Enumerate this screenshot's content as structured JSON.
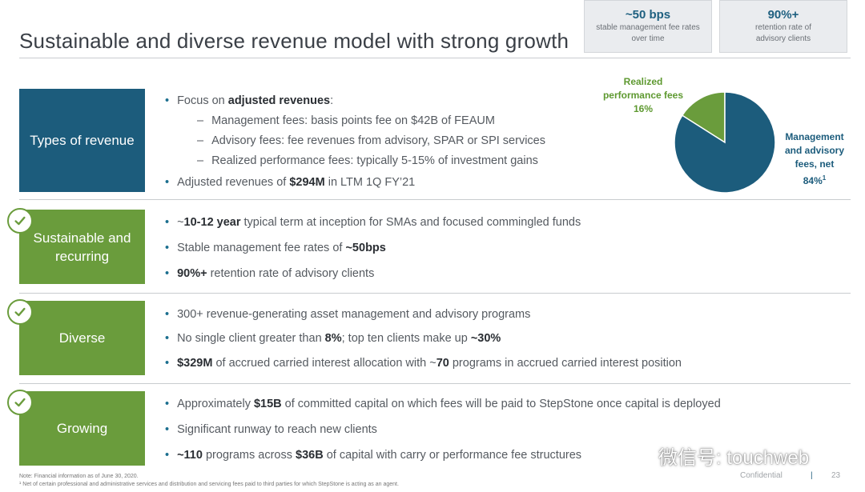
{
  "title": "Sustainable and diverse revenue model with strong growth",
  "stats": [
    {
      "big": "~50 bps",
      "small1": "stable management fee rates",
      "small2": "over time"
    },
    {
      "big": "90%+",
      "small1": "retention rate of",
      "small2": "advisory clients"
    }
  ],
  "sections": {
    "types": {
      "label": "Types of revenue",
      "focus_pre": "Focus on ",
      "focus_bold": "adjusted revenues",
      "focus_post": ":",
      "sub1": "Management fees: basis points fee on $42B of FEAUM",
      "sub2": "Advisory fees: fee revenues from advisory, SPAR or SPI services",
      "sub3": "Realized performance fees: typically 5-15% of investment gains",
      "adj_pre": "Adjusted revenues of ",
      "adj_bold": "$294M",
      "adj_post": " in LTM 1Q FY’21"
    },
    "sustainable": {
      "label_line1": "Sustainable and",
      "label_line2": "recurring",
      "b1_pre": "~",
      "b1_bold": "10-12 year",
      "b1_post": " typical term at inception for SMAs and focused commingled funds",
      "b2_pre": "Stable management fee rates of ",
      "b2_bold": "~50bps",
      "b3_bold": "90%+",
      "b3_post": " retention rate of advisory clients"
    },
    "diverse": {
      "label": "Diverse",
      "b1": "300+ revenue-generating asset management and advisory programs",
      "b2_pre": "No single client greater than ",
      "b2_bold1": "8%",
      "b2_mid": "; top ten clients make up ",
      "b2_bold2": "~30%",
      "b3_bold1": "$329M",
      "b3_mid": " of accrued carried interest allocation with ~",
      "b3_bold2": "70",
      "b3_post": " programs in accrued carried interest position"
    },
    "growing": {
      "label": "Growing",
      "b1_pre": "Approximately ",
      "b1_bold": "$15B",
      "b1_post": " of committed capital on which fees will be paid to StepStone once capital is deployed",
      "b2": "Significant runway to reach new clients",
      "b3_bold1": "~110",
      "b3_mid": " programs across ",
      "b3_bold2": "$36B",
      "b3_post": " of capital with carry or performance fee structures"
    }
  },
  "pie": {
    "small_line1": "Realized",
    "small_line2": "performance fees",
    "small_value": "16%",
    "big_line1": "Management",
    "big_line2": "and advisory",
    "big_line3": "fees, net",
    "big_value": "84%",
    "big_sup": "1"
  },
  "chart_data": {
    "type": "pie",
    "categories": [
      "Realized performance fees",
      "Management and advisory fees, net"
    ],
    "values": [
      16,
      84
    ],
    "colors": [
      "#6a9c3c",
      "#1c5c7c"
    ]
  },
  "notes": {
    "note1": "Note: Financial information as of June 30, 2020.",
    "note2": "¹ Net of certain professional and administrative services and distribution and servicing fees paid to third parties for which StepStone is acting as an agent."
  },
  "footer": {
    "confidential": "Confidential",
    "divider": "|",
    "page": "23"
  },
  "watermark": {
    "text": "微信号: touchweb",
    "icon": "wechat-icon"
  },
  "colors": {
    "teal": "#1c5c7c",
    "green": "#6a9c3c",
    "bullet": "#1c6f8f"
  }
}
